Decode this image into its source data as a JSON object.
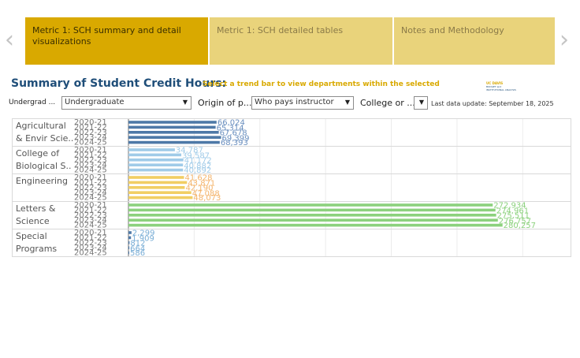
{
  "nav": {
    "prev_glyph": "‹",
    "next_glyph": "›"
  },
  "tabs": [
    {
      "label": "Metric 1: SCH summary and detail visualizations",
      "active": true
    },
    {
      "label": "Metric 1: SCH detailed tables",
      "active": false
    },
    {
      "label": "Notes and Methodology",
      "active": false
    }
  ],
  "header": {
    "title": "Summary of Student Credit Hours:",
    "subtitle": "Select a trend bar to view departments within the selected",
    "logo_line1": "UC DAVIS",
    "logo_line2": "BUDGET and INSTITUTIONAL ANALYSIS"
  },
  "filters": {
    "level_label": "Undergrad ...",
    "level_value": "Undergraduate",
    "origin_label": "Origin of p...",
    "origin_value": "Who pays instructor",
    "college_label": "College or ...",
    "college_value": "",
    "last_update": "Last data update: September 18, 2025"
  },
  "chart_data": {
    "type": "bar",
    "orientation": "horizontal",
    "grid": true,
    "categories": [
      "Agricultural & Envir Scie..",
      "College of Biological S..",
      "Engineering",
      "Letters & Science",
      "Special Programs"
    ],
    "years": [
      "2020-21",
      "2021-22",
      "2022-23",
      "2023-24",
      "2024-25"
    ],
    "colors": {
      "Agricultural & Envir Scie..": "#4e79a7",
      "College of Biological S..": "#a0cbe8",
      "Engineering": "#f1ce63",
      "Letters & Science": "#8cd17d",
      "Special Programs": "#4e79a7"
    },
    "label_colors": {
      "Agricultural & Envir Scie..": "#6a8fbf",
      "College of Biological S..": "#a0cbe8",
      "Engineering": "#f4b46b",
      "Letters & Science": "#8cd17d",
      "Special Programs": "#7aaed6"
    },
    "series": [
      {
        "category": "Agricultural & Envir Scie..",
        "values": [
          66024,
          65314,
          67678,
          69399,
          68393
        ],
        "labels": [
          "66,024",
          "65,314",
          "67,678",
          "69,399",
          "68,393"
        ]
      },
      {
        "category": "College of Biological S..",
        "values": [
          34787,
          39587,
          41172,
          40882,
          40892
        ],
        "labels": [
          "34,787",
          "39,587",
          "41,172",
          "40,882",
          "40,892"
        ]
      },
      {
        "category": "Engineering",
        "values": [
          41628,
          43871,
          42190,
          47088,
          48073
        ],
        "labels": [
          "41,628",
          "43,871",
          "42,190",
          "47,088",
          "48,073"
        ]
      },
      {
        "category": "Letters & Science",
        "values": [
          272934,
          274961,
          275511,
          276757,
          280257
        ],
        "labels": [
          "272,934",
          "274,961",
          "275,511",
          "276,757",
          "280,257"
        ]
      },
      {
        "category": "Special Programs",
        "values": [
          2299,
          1909,
          812,
          664,
          586
        ],
        "labels": [
          "2,299",
          "1,909",
          "812",
          "664",
          "586"
        ]
      }
    ],
    "xlim": [
      0,
      320000
    ]
  }
}
